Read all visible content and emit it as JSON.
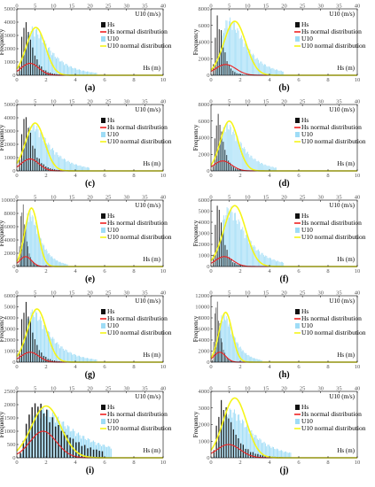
{
  "chart_data": [
    {
      "id": "a",
      "label": "(a)",
      "type": "bar",
      "x_label": "Hs (m)",
      "x2_label": "U10 (m/s)",
      "y_label": "Frequency",
      "xlim": [
        0,
        10
      ],
      "x2lim": [
        0,
        40
      ],
      "ylim": [
        0,
        5000
      ],
      "x_ticks": [
        0,
        2,
        4,
        6,
        8,
        10
      ],
      "x2_ticks": [
        0,
        5,
        10,
        15,
        20,
        25,
        30,
        35,
        40
      ],
      "y_ticks": [
        0,
        1000,
        2000,
        3000,
        4000,
        5000
      ],
      "hs": {
        "mode": 0.6,
        "peak": 4200,
        "max": 4.5,
        "skew": 0.55
      },
      "u10": {
        "mode": 4.5,
        "peak": 3700,
        "max": 22,
        "skew": 0.65
      },
      "hs_normal": {
        "mean": 0.9,
        "sd": 0.6,
        "peak": 900
      },
      "u10_normal": {
        "mean": 5.2,
        "sd": 2.6,
        "peak": 3600
      },
      "legend": [
        "Hs",
        "Hs normal distribution",
        "U10",
        "U10 normal distribution"
      ]
    },
    {
      "id": "b",
      "label": "(b)",
      "type": "bar",
      "x_label": "Hs (m)",
      "x2_label": "U10 (m/s)",
      "y_label": "Frequency",
      "xlim": [
        0,
        10
      ],
      "x2lim": [
        0,
        40
      ],
      "ylim": [
        0,
        8000
      ],
      "x_ticks": [
        0,
        2,
        4,
        6,
        8,
        10
      ],
      "x2_ticks": [
        0,
        5,
        10,
        15,
        20,
        25,
        30,
        35,
        40
      ],
      "y_ticks": [
        0,
        2000,
        4000,
        6000,
        8000
      ],
      "hs": {
        "mode": 0.5,
        "peak": 7300,
        "max": 4,
        "skew": 0.5
      },
      "u10": {
        "mode": 5,
        "peak": 7000,
        "max": 20,
        "skew": 0.6
      },
      "hs_normal": {
        "mean": 1.0,
        "sd": 0.7,
        "peak": 1300
      },
      "u10_normal": {
        "mean": 6.5,
        "sd": 3.0,
        "peak": 6500
      },
      "legend": [
        "Hs",
        "Hs normal distribution",
        "U10",
        "U10 normal distribution"
      ]
    },
    {
      "id": "c",
      "label": "(c)",
      "type": "bar",
      "x_label": "Hs (m)",
      "x2_label": "U10 (m/s)",
      "y_label": "Frequency",
      "xlim": [
        0,
        10
      ],
      "x2lim": [
        0,
        40
      ],
      "ylim": [
        0,
        5000
      ],
      "x_ticks": [
        0,
        2,
        4,
        6,
        8,
        10
      ],
      "x2_ticks": [
        0,
        5,
        10,
        15,
        20,
        25,
        30,
        35,
        40
      ],
      "y_ticks": [
        0,
        1000,
        2000,
        3000,
        4000,
        5000
      ],
      "hs": {
        "mode": 0.6,
        "peak": 4300,
        "max": 4.5,
        "skew": 0.55
      },
      "u10": {
        "mode": 4.5,
        "peak": 3600,
        "max": 20,
        "skew": 0.65
      },
      "hs_normal": {
        "mean": 0.9,
        "sd": 0.6,
        "peak": 900
      },
      "u10_normal": {
        "mean": 5.0,
        "sd": 2.6,
        "peak": 3600
      },
      "legend": [
        "Hs",
        "Hs normal distribution",
        "U10",
        "U10 normal distribution"
      ]
    },
    {
      "id": "d",
      "label": "(d)",
      "type": "bar",
      "x_label": "Hs (m)",
      "x2_label": "U10 (m/s)",
      "y_label": "Frequency",
      "xlim": [
        0,
        10
      ],
      "x2lim": [
        0,
        40
      ],
      "ylim": [
        0,
        8000
      ],
      "x_ticks": [
        0,
        2,
        4,
        6,
        8,
        10
      ],
      "x2_ticks": [
        0,
        5,
        10,
        15,
        20,
        25,
        30,
        35,
        40
      ],
      "y_ticks": [
        0,
        2000,
        4000,
        6000,
        8000
      ],
      "hs": {
        "mode": 0.5,
        "peak": 7000,
        "max": 3.5,
        "skew": 0.5
      },
      "u10": {
        "mode": 4.5,
        "peak": 5800,
        "max": 18,
        "skew": 0.6
      },
      "hs_normal": {
        "mean": 0.8,
        "sd": 0.6,
        "peak": 1200
      },
      "u10_normal": {
        "mean": 5.0,
        "sd": 2.4,
        "peak": 6000
      },
      "legend": [
        "Hs",
        "Hs normal distribution",
        "U10",
        "U10 normal distribution"
      ]
    },
    {
      "id": "e",
      "label": "(e)",
      "type": "bar",
      "x_label": "Hs (m)",
      "x2_label": "U10 (m/s)",
      "y_label": "Frequency",
      "xlim": [
        0,
        10
      ],
      "x2lim": [
        0,
        40
      ],
      "ylim": [
        0,
        10000
      ],
      "x_ticks": [
        0,
        2,
        4,
        6,
        8,
        10
      ],
      "x2_ticks": [
        0,
        5,
        10,
        15,
        20,
        25,
        30,
        35,
        40
      ],
      "y_ticks": [
        0,
        2000,
        4000,
        6000,
        8000,
        10000
      ],
      "hs": {
        "mode": 0.4,
        "peak": 9800,
        "max": 2.5,
        "skew": 0.45
      },
      "u10": {
        "mode": 3.5,
        "peak": 8500,
        "max": 14,
        "skew": 0.55
      },
      "hs_normal": {
        "mean": 0.6,
        "sd": 0.4,
        "peak": 1500
      },
      "u10_normal": {
        "mean": 4.0,
        "sd": 1.8,
        "peak": 8800
      },
      "legend": [
        "Hs",
        "Hs normal distribution",
        "U10",
        "U10 normal distribution"
      ]
    },
    {
      "id": "f",
      "label": "(f)",
      "type": "bar",
      "x_label": "Hs (m)",
      "x2_label": "U10 (m/s)",
      "y_label": "Frequency",
      "xlim": [
        0,
        10
      ],
      "x2lim": [
        0,
        40
      ],
      "ylim": [
        0,
        6000
      ],
      "x_ticks": [
        0,
        2,
        4,
        6,
        8,
        10
      ],
      "x2_ticks": [
        0,
        5,
        10,
        15,
        20,
        25,
        30,
        35,
        40
      ],
      "y_ticks": [
        0,
        1000,
        2000,
        3000,
        4000,
        5000,
        6000
      ],
      "hs": {
        "mode": 0.5,
        "peak": 5800,
        "max": 4,
        "skew": 0.5
      },
      "u10": {
        "mode": 5,
        "peak": 5500,
        "max": 20,
        "skew": 0.6
      },
      "hs_normal": {
        "mean": 0.9,
        "sd": 0.6,
        "peak": 900
      },
      "u10_normal": {
        "mean": 6.5,
        "sd": 3.0,
        "peak": 5500
      },
      "legend": [
        "Hs",
        "Hs normal distribution",
        "U10",
        "U10 normal distribution"
      ]
    },
    {
      "id": "g",
      "label": "(g)",
      "type": "bar",
      "x_label": "Hs (m)",
      "x2_label": "U10 (m/s)",
      "y_label": "Frequency",
      "xlim": [
        0,
        10
      ],
      "x2lim": [
        0,
        40
      ],
      "ylim": [
        0,
        6000
      ],
      "x_ticks": [
        0,
        2,
        4,
        6,
        8,
        10
      ],
      "x2_ticks": [
        0,
        5,
        10,
        15,
        20,
        25,
        30,
        35,
        40
      ],
      "y_ticks": [
        0,
        1000,
        2000,
        3000,
        4000,
        5000,
        6000
      ],
      "hs": {
        "mode": 0.6,
        "peak": 5600,
        "max": 4.5,
        "skew": 0.55
      },
      "u10": {
        "mode": 4.5,
        "peak": 4800,
        "max": 22,
        "skew": 0.65
      },
      "hs_normal": {
        "mean": 0.9,
        "sd": 0.6,
        "peak": 900
      },
      "u10_normal": {
        "mean": 5.5,
        "sd": 2.6,
        "peak": 4800
      },
      "legend": [
        "Hs",
        "Hs normal distribution",
        "U10",
        "U10 normal distribution"
      ]
    },
    {
      "id": "h",
      "label": "(h)",
      "type": "bar",
      "x_label": "Hs (m)",
      "x2_label": "U10 (m/s)",
      "y_label": "Frequency",
      "xlim": [
        0,
        10
      ],
      "x2lim": [
        0,
        40
      ],
      "ylim": [
        0,
        12000
      ],
      "x_ticks": [
        0,
        2,
        4,
        6,
        8,
        10
      ],
      "x2_ticks": [
        0,
        5,
        10,
        15,
        20,
        25,
        30,
        35,
        40
      ],
      "y_ticks": [
        0,
        2000,
        4000,
        6000,
        8000,
        10000,
        12000
      ],
      "hs": {
        "mode": 0.4,
        "peak": 11500,
        "max": 2.5,
        "skew": 0.45
      },
      "u10": {
        "mode": 3.5,
        "peak": 9000,
        "max": 14,
        "skew": 0.55
      },
      "hs_normal": {
        "mean": 0.6,
        "sd": 0.4,
        "peak": 1800
      },
      "u10_normal": {
        "mean": 4.0,
        "sd": 1.8,
        "peak": 9000
      },
      "legend": [
        "Hs",
        "Hs normal distribution",
        "U10",
        "U10 normal distribution"
      ]
    },
    {
      "id": "i",
      "label": "(i)",
      "type": "bar",
      "x_label": "Hs (m)",
      "x2_label": "U10 (m/s)",
      "y_label": "Frequency",
      "xlim": [
        0,
        10
      ],
      "x2lim": [
        0,
        40
      ],
      "ylim": [
        0,
        2500
      ],
      "x_ticks": [
        0,
        2,
        4,
        6,
        8,
        10
      ],
      "x2_ticks": [
        0,
        5,
        10,
        15,
        20,
        25,
        30,
        35,
        40
      ],
      "y_ticks": [
        0,
        500,
        1000,
        1500,
        2000,
        2500
      ],
      "hs": {
        "mode": 1.4,
        "peak": 2150,
        "max": 6,
        "skew": 0.7
      },
      "u10": {
        "mode": 7,
        "peak": 1900,
        "max": 26,
        "skew": 0.75
      },
      "hs_normal": {
        "mean": 1.8,
        "sd": 0.9,
        "peak": 1000
      },
      "u10_normal": {
        "mean": 8.0,
        "sd": 4.0,
        "peak": 1950
      },
      "legend": [
        "Hs",
        "Hs normal distribution",
        "U10",
        "U10 normal distribution"
      ]
    },
    {
      "id": "j",
      "label": "(j)",
      "type": "bar",
      "x_label": "Hs (m)",
      "x2_label": "U10 (m/s)",
      "y_label": "Frequency",
      "xlim": [
        0,
        10
      ],
      "x2lim": [
        0,
        40
      ],
      "ylim": [
        0,
        4000
      ],
      "x_ticks": [
        0,
        2,
        4,
        6,
        8,
        10
      ],
      "x2_ticks": [
        0,
        5,
        10,
        15,
        20,
        25,
        30,
        35,
        40
      ],
      "y_ticks": [
        0,
        1000,
        2000,
        3000,
        4000
      ],
      "hs": {
        "mode": 0.8,
        "peak": 3500,
        "max": 5,
        "skew": 0.6
      },
      "u10": {
        "mode": 5.5,
        "peak": 3000,
        "max": 22,
        "skew": 0.65
      },
      "hs_normal": {
        "mean": 1.2,
        "sd": 0.8,
        "peak": 800
      },
      "u10_normal": {
        "mean": 6.5,
        "sd": 3.2,
        "peak": 3600
      },
      "legend": [
        "Hs",
        "Hs normal distribution",
        "U10",
        "U10 normal distribution"
      ]
    }
  ],
  "colors": {
    "hs": "#111111",
    "hs_normal": "#ee2222",
    "u10": "#9edcf6",
    "u10_normal": "#f5f51a",
    "axis": "#000000"
  }
}
